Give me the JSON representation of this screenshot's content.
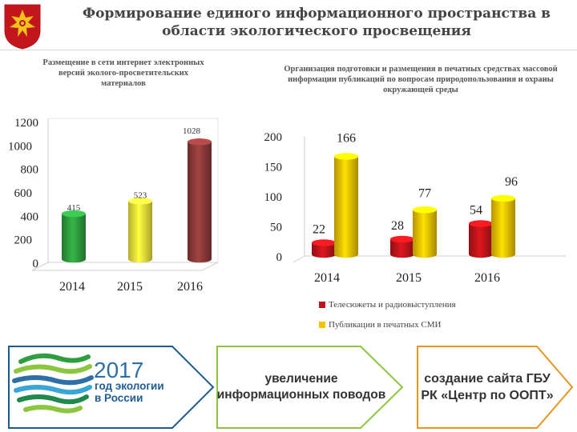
{
  "header": {
    "title_line1": "Формирование единого информационного пространства в",
    "title_line2": "области экологического просвещения"
  },
  "colors": {
    "red": "#c0141a",
    "yellow": "#f2c400",
    "green": "#2f9e3f",
    "dark_red": "#8e3a3a",
    "blue": "#2d6fa6"
  },
  "chart_data": [
    {
      "type": "bar",
      "title": "Размещение в сети интернет электронных версий эколого-просветительских материалов",
      "categories": [
        "2014",
        "2015",
        "2016"
      ],
      "values": [
        415,
        523,
        1028
      ],
      "data_labels": [
        "415",
        "523",
        "1028"
      ],
      "bar_colors": [
        "#2f9e3f",
        "#f2e53a",
        "#8e3a3a"
      ],
      "ylim": [
        0,
        1200
      ],
      "yticks": [
        "0",
        "200",
        "400",
        "600",
        "800",
        "1000",
        "1200"
      ],
      "xlabel": "",
      "ylabel": "",
      "grid": false,
      "style": "3d-cylinder"
    },
    {
      "type": "bar",
      "title": "Организация подготовки и размещения в печатных средствах массовой информации публикаций по вопросам природопользования и охраны окружающей среды",
      "categories": [
        "2014",
        "2015",
        "2016"
      ],
      "series": [
        {
          "name": "Телесюжеты и радиовыступления",
          "values": [
            22,
            28,
            54
          ],
          "color": "#c0141a"
        },
        {
          "name": "Публикации в печатных СМИ",
          "values": [
            166,
            77,
            96
          ],
          "color": "#f2c400"
        }
      ],
      "data_labels": [
        [
          "22",
          "28",
          "54"
        ],
        [
          "166",
          "77",
          "96"
        ]
      ],
      "ylim": [
        0,
        200
      ],
      "yticks": [
        "0",
        "50",
        "100",
        "150",
        "200"
      ],
      "xlabel": "",
      "ylabel": "",
      "grid": false,
      "legend_position": "bottom",
      "style": "3d-cylinder"
    }
  ],
  "boxes": {
    "year_number": "2017",
    "year_line1": "год экологии",
    "year_line2": "в России",
    "box2": "увеличение информационных поводов",
    "box3": "создание сайта ГБУ РК «Центр по ООПТ»"
  }
}
